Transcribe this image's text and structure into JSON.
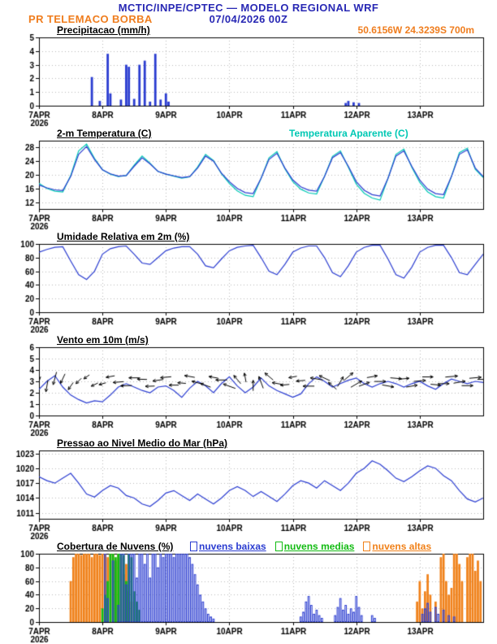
{
  "header": {
    "title": "MCTIC/INPE/CPTEC — MODELO REGIONAL WRF",
    "station": "PR TELEMACO BORBA",
    "run": "07/04/2026 00Z",
    "location": "50.6156W 24.3239S 700m"
  },
  "colors": {
    "blue": "#2a3cd0",
    "cyan": "#00c8b4",
    "green": "#12bb12",
    "orange": "#f08018",
    "axis": "#000000",
    "grid": "#b9b9b9",
    "title_blue": "#2828b4",
    "text_orange": "#ef7d1e",
    "black": "#000000"
  },
  "x_axis": {
    "labels": [
      "7APR",
      "8APR",
      "9APR",
      "10APR",
      "11APR",
      "12APR",
      "13APR"
    ],
    "year": "2026",
    "hours_total": 168
  },
  "chart_data": [
    {
      "name": "precipitation",
      "title": "Precipitacao (mm/h)",
      "type": "bar",
      "ylim": [
        0,
        5
      ],
      "yticks": [
        0,
        1,
        2,
        3,
        4,
        5
      ],
      "color": "blue",
      "bars": [
        [
          20,
          2.1
        ],
        [
          23,
          0.35
        ],
        [
          26,
          3.8
        ],
        [
          27,
          0.9
        ],
        [
          31,
          0.45
        ],
        [
          33,
          3.0
        ],
        [
          34,
          2.85
        ],
        [
          36,
          0.5
        ],
        [
          38,
          3.0
        ],
        [
          40,
          3.3
        ],
        [
          42,
          0.3
        ],
        [
          44,
          3.8
        ],
        [
          46,
          0.45
        ],
        [
          48,
          0.9
        ],
        [
          49,
          0.3
        ],
        [
          116,
          0.2
        ],
        [
          117,
          0.35
        ],
        [
          119,
          0.25
        ],
        [
          121,
          0.2
        ]
      ]
    },
    {
      "name": "temperature_2m",
      "title": "2-m Temperatura (C)",
      "legend": "Temperatura Aparente (C)",
      "type": "line",
      "ylim": [
        10,
        30
      ],
      "yticks": [
        12,
        16,
        20,
        24,
        28
      ],
      "step_hours": 3,
      "series": [
        {
          "name": "Temperatura Aparente (C)",
          "color": "cyan",
          "values": [
            17.5,
            16.0,
            15.2,
            15.0,
            19.8,
            27.0,
            29.0,
            24.8,
            21.5,
            20.2,
            19.5,
            19.8,
            22.8,
            25.5,
            23.4,
            21.0,
            20.2,
            19.6,
            19.0,
            19.4,
            22.3,
            26.0,
            24.2,
            20.3,
            17.5,
            15.3,
            14.0,
            13.6,
            19.0,
            25.0,
            26.8,
            21.8,
            18.0,
            15.8,
            14.7,
            14.4,
            19.6,
            25.4,
            27.0,
            22.2,
            17.3,
            14.6,
            13.2,
            12.6,
            19.0,
            26.0,
            27.5,
            22.2,
            17.8,
            15.0,
            13.6,
            13.2,
            19.6,
            26.5,
            27.8,
            21.6,
            19.2
          ]
        },
        {
          "name": "2-m Temperatura (C)",
          "color": "blue",
          "values": [
            17.0,
            16.2,
            15.6,
            15.4,
            19.5,
            26.0,
            28.3,
            24.5,
            21.5,
            20.3,
            19.6,
            19.8,
            22.5,
            25.0,
            23.2,
            21.0,
            20.2,
            19.7,
            19.2,
            19.5,
            22.0,
            25.5,
            24.0,
            20.5,
            18.0,
            16.0,
            14.8,
            14.5,
            19.0,
            24.5,
            26.3,
            22.0,
            18.5,
            16.5,
            15.5,
            15.2,
            19.5,
            25.0,
            26.5,
            22.5,
            18.0,
            15.5,
            14.2,
            13.8,
            19.0,
            25.5,
            27.0,
            22.5,
            18.5,
            15.8,
            14.5,
            14.2,
            19.5,
            26.0,
            27.3,
            22.0,
            19.5
          ]
        }
      ]
    },
    {
      "name": "relative_humidity_2m",
      "title": "Umidade Relativa em 2m (%)",
      "type": "line",
      "ylim": [
        0,
        100
      ],
      "yticks": [
        0,
        20,
        40,
        60,
        80,
        100
      ],
      "step_hours": 3,
      "series": [
        {
          "name": "Umidade Relativa em 2m (%)",
          "color": "blue",
          "values": [
            88,
            92,
            95,
            96,
            75,
            55,
            48,
            60,
            85,
            93,
            96,
            97,
            85,
            72,
            70,
            80,
            90,
            94,
            96,
            96,
            85,
            68,
            65,
            78,
            90,
            95,
            97,
            98,
            80,
            60,
            55,
            70,
            88,
            94,
            97,
            97,
            80,
            58,
            52,
            68,
            88,
            95,
            98,
            98,
            78,
            55,
            50,
            66,
            88,
            95,
            98,
            98,
            80,
            58,
            55,
            70,
            85
          ]
        }
      ]
    },
    {
      "name": "wind_10m",
      "title": "Vento em 10m (m/s)",
      "type": "line",
      "ylim": [
        0,
        6
      ],
      "yticks": [
        0,
        1,
        2,
        3,
        4,
        5,
        6
      ],
      "step_hours": 3,
      "arrow_level": 3,
      "series": [
        {
          "name": "Vento em 10m (m/s)",
          "color": "blue",
          "values": [
            2.3,
            3.0,
            3.5,
            2.5,
            1.8,
            1.4,
            1.1,
            1.3,
            1.2,
            1.8,
            2.5,
            2.8,
            2.5,
            2.2,
            2.0,
            2.5,
            2.6,
            2.2,
            1.6,
            2.4,
            3.0,
            2.6,
            2.0,
            2.8,
            3.4,
            2.6,
            2.0,
            2.5,
            3.3,
            2.6,
            2.2,
            1.9,
            1.6,
            1.9,
            2.8,
            3.4,
            3.0,
            2.5,
            2.8,
            3.1,
            3.3,
            2.8,
            2.5,
            2.8,
            3.0,
            2.8,
            2.5,
            2.8,
            3.0,
            2.6,
            2.3,
            2.8,
            3.2,
            3.0,
            2.8,
            3.0,
            2.9
          ]
        }
      ],
      "dir_deg": [
        250,
        260,
        255,
        245,
        235,
        225,
        215,
        205,
        195,
        190,
        185,
        182,
        180,
        178,
        182,
        188,
        185,
        180,
        175,
        170,
        165,
        160,
        170,
        180,
        160,
        130,
        100,
        90,
        110,
        140,
        170,
        185,
        190,
        185,
        180,
        170,
        155,
        140,
        60,
        40,
        30,
        20,
        10,
        0,
        350,
        355,
        5,
        10,
        5,
        0,
        355,
        0,
        5,
        10,
        0,
        5,
        0
      ]
    },
    {
      "name": "mean_sea_level_pressure",
      "title": "Pressao ao Nivel Medio do Mar (hPa)",
      "type": "line",
      "ylim": [
        1009.8,
        1023.6
      ],
      "yticks": [
        1011,
        1014,
        1017,
        1020,
        1023
      ],
      "step_hours": 3,
      "series": [
        {
          "name": "Pressao ao Nivel Medio do Mar (hPa)",
          "color": "blue",
          "values": [
            1018.3,
            1017.5,
            1017.0,
            1018.0,
            1019.0,
            1017.0,
            1014.8,
            1014.2,
            1015.5,
            1016.5,
            1016.0,
            1014.5,
            1014.0,
            1012.8,
            1012.3,
            1013.5,
            1015.0,
            1015.5,
            1014.5,
            1013.5,
            1014.8,
            1013.8,
            1012.8,
            1014.0,
            1015.5,
            1016.3,
            1015.5,
            1014.3,
            1015.3,
            1014.3,
            1013.3,
            1014.8,
            1016.5,
            1017.5,
            1017.0,
            1016.0,
            1017.5,
            1016.5,
            1015.5,
            1017.0,
            1019.0,
            1020.0,
            1021.5,
            1020.8,
            1019.5,
            1018.0,
            1017.3,
            1018.3,
            1019.5,
            1020.5,
            1020.0,
            1018.5,
            1017.5,
            1015.5,
            1013.8,
            1013.2,
            1014.0
          ]
        }
      ]
    },
    {
      "name": "cloud_cover",
      "title": "Cobertura de Nuvens (%)",
      "type": "bar",
      "ylim": [
        0,
        100
      ],
      "yticks": [
        0,
        20,
        40,
        60,
        80,
        100
      ],
      "legend": [
        {
          "label": "nuvens baixas",
          "color": "blue"
        },
        {
          "label": "nuvens medias",
          "color": "green"
        },
        {
          "label": "nuvens altas",
          "color": "orange"
        }
      ],
      "series": [
        {
          "name": "nuvens altas",
          "color": "orange",
          "style": "fill",
          "bars": [
            [
              12,
              60
            ],
            [
              13,
              95
            ],
            [
              14,
              100
            ],
            [
              15,
              100
            ],
            [
              16,
              98
            ],
            [
              17,
              100
            ],
            [
              18,
              100
            ],
            [
              19,
              100
            ],
            [
              20,
              95
            ],
            [
              21,
              100
            ],
            [
              22,
              100
            ],
            [
              23,
              98
            ],
            [
              24,
              100
            ],
            [
              25,
              100
            ],
            [
              26,
              95
            ],
            [
              27,
              100
            ],
            [
              28,
              100
            ],
            [
              29,
              90
            ],
            [
              30,
              100
            ],
            [
              31,
              95
            ],
            [
              32,
              70
            ],
            [
              33,
              85
            ],
            [
              34,
              45
            ],
            [
              35,
              30
            ],
            [
              143,
              30
            ],
            [
              144,
              60
            ],
            [
              145,
              20
            ],
            [
              146,
              45
            ],
            [
              147,
              70
            ],
            [
              148,
              40
            ],
            [
              150,
              30
            ],
            [
              152,
              95
            ],
            [
              153,
              100
            ],
            [
              154,
              60
            ],
            [
              155,
              40
            ],
            [
              156,
              50
            ],
            [
              157,
              100
            ],
            [
              158,
              100
            ],
            [
              159,
              85
            ],
            [
              160,
              60
            ],
            [
              162,
              95
            ],
            [
              163,
              100
            ],
            [
              164,
              100
            ],
            [
              165,
              75
            ],
            [
              166,
              90
            ],
            [
              167,
              60
            ]
          ]
        },
        {
          "name": "nuvens medias",
          "color": "green",
          "style": "fill",
          "bars": [
            [
              24,
              20
            ],
            [
              25,
              40
            ],
            [
              26,
              60
            ],
            [
              27,
              100
            ],
            [
              28,
              100
            ],
            [
              29,
              95
            ],
            [
              30,
              100
            ],
            [
              31,
              100
            ],
            [
              32,
              98
            ],
            [
              33,
              60
            ],
            [
              34,
              100
            ],
            [
              35,
              95
            ],
            [
              36,
              45
            ],
            [
              37,
              30
            ],
            [
              38,
              18
            ]
          ]
        },
        {
          "name": "nuvens baixas",
          "color": "blue",
          "style": "stroke",
          "bars": [
            [
              25,
              100
            ],
            [
              26,
              35
            ],
            [
              28,
              90
            ],
            [
              30,
              25
            ],
            [
              31,
              100
            ],
            [
              32,
              100
            ],
            [
              33,
              55
            ],
            [
              34,
              100
            ],
            [
              35,
              100
            ],
            [
              36,
              100
            ],
            [
              37,
              65
            ],
            [
              38,
              100
            ],
            [
              39,
              100
            ],
            [
              40,
              85
            ],
            [
              41,
              100
            ],
            [
              42,
              65
            ],
            [
              43,
              100
            ],
            [
              44,
              100
            ],
            [
              45,
              80
            ],
            [
              46,
              100
            ],
            [
              47,
              95
            ],
            [
              48,
              100
            ],
            [
              49,
              100
            ],
            [
              50,
              100
            ],
            [
              51,
              95
            ],
            [
              52,
              100
            ],
            [
              53,
              100
            ],
            [
              54,
              100
            ],
            [
              55,
              100
            ],
            [
              56,
              100
            ],
            [
              57,
              95
            ],
            [
              58,
              85
            ],
            [
              59,
              70
            ],
            [
              60,
              55
            ],
            [
              61,
              40
            ],
            [
              62,
              30
            ],
            [
              63,
              20
            ],
            [
              64,
              12
            ],
            [
              65,
              8
            ],
            [
              66,
              5
            ],
            [
              99,
              8
            ],
            [
              100,
              15
            ],
            [
              101,
              30
            ],
            [
              102,
              38
            ],
            [
              103,
              25
            ],
            [
              104,
              12
            ],
            [
              105,
              18
            ],
            [
              106,
              10
            ],
            [
              107,
              6
            ],
            [
              112,
              10
            ],
            [
              113,
              22
            ],
            [
              114,
              35
            ],
            [
              115,
              18
            ],
            [
              116,
              25
            ],
            [
              117,
              12
            ],
            [
              118,
              20
            ],
            [
              119,
              15
            ],
            [
              120,
              38
            ],
            [
              121,
              22
            ],
            [
              122,
              10
            ],
            [
              126,
              10
            ],
            [
              127,
              6
            ],
            [
              145,
              12
            ],
            [
              146,
              20
            ],
            [
              147,
              28
            ],
            [
              148,
              15
            ],
            [
              150,
              22
            ],
            [
              151,
              12
            ],
            [
              153,
              18
            ],
            [
              155,
              10
            ],
            [
              157,
              8
            ]
          ]
        }
      ]
    }
  ]
}
